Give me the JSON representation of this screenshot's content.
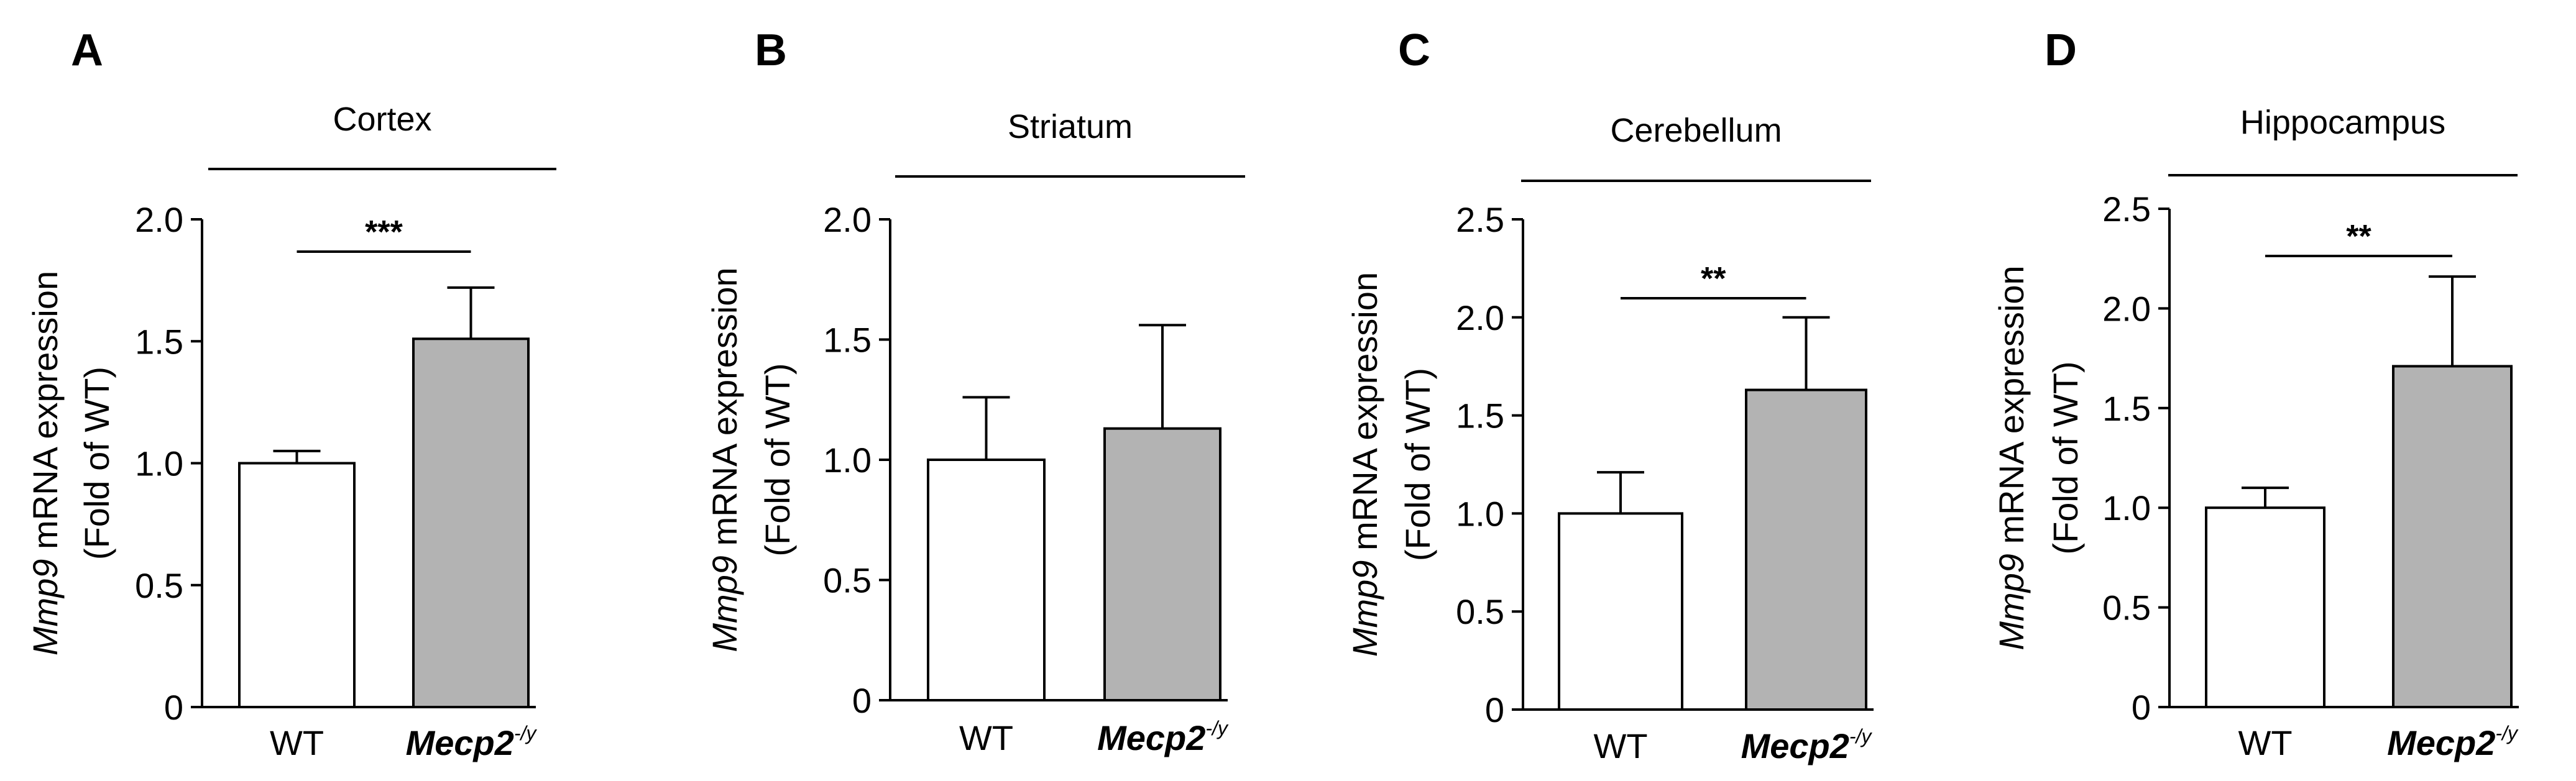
{
  "chart_data": [
    {
      "type": "bar",
      "panel_label": "A",
      "title": "Cortex",
      "ylabel_gene": "Mmp9",
      "ylabel_rest": " mRNA expression",
      "ylabel_line2": "(Fold of WT)",
      "categories": [
        "WT",
        "Mecp2"
      ],
      "category_superscript": [
        "",
        "-/y"
      ],
      "values": [
        1.0,
        1.51
      ],
      "errors": [
        0.05,
        0.21
      ],
      "bar_colors": [
        "#ffffff",
        "#b3b3b3"
      ],
      "yticks": [
        "0",
        "0.5",
        "1.0",
        "1.5",
        "2.0"
      ],
      "ylim": [
        0,
        2.0
      ],
      "significance": "***",
      "grid": false
    },
    {
      "type": "bar",
      "panel_label": "B",
      "title": "Striatum",
      "ylabel_gene": "Mmp9",
      "ylabel_rest": " mRNA expression",
      "ylabel_line2": "(Fold of WT)",
      "categories": [
        "WT",
        "Mecp2"
      ],
      "category_superscript": [
        "",
        "-/y"
      ],
      "values": [
        1.0,
        1.13
      ],
      "errors": [
        0.26,
        0.43
      ],
      "bar_colors": [
        "#ffffff",
        "#b3b3b3"
      ],
      "yticks": [
        "0",
        "0.5",
        "1.0",
        "1.5",
        "2.0"
      ],
      "ylim": [
        0,
        2.0
      ],
      "significance": "",
      "grid": false
    },
    {
      "type": "bar",
      "panel_label": "C",
      "title": "Cerebellum",
      "ylabel_gene": "Mmp9",
      "ylabel_rest": " mRNA expression",
      "ylabel_line2": "(Fold of WT)",
      "categories": [
        "WT",
        "Mecp2"
      ],
      "category_superscript": [
        "",
        "-/y"
      ],
      "values": [
        1.0,
        1.63
      ],
      "errors": [
        0.21,
        0.37
      ],
      "bar_colors": [
        "#ffffff",
        "#b3b3b3"
      ],
      "yticks": [
        "0",
        "0.5",
        "1.0",
        "1.5",
        "2.0",
        "2.5"
      ],
      "ylim": [
        0,
        2.5
      ],
      "significance": "**",
      "grid": false
    },
    {
      "type": "bar",
      "panel_label": "D",
      "title": "Hippocampus",
      "ylabel_gene": "Mmp9",
      "ylabel_rest": " mRNA expression",
      "ylabel_line2": "(Fold of WT)",
      "categories": [
        "WT",
        "Mecp2"
      ],
      "category_superscript": [
        "",
        "-/y"
      ],
      "values": [
        1.0,
        1.71
      ],
      "errors": [
        0.1,
        0.45
      ],
      "bar_colors": [
        "#ffffff",
        "#b3b3b3"
      ],
      "yticks": [
        "0",
        "0.5",
        "1.0",
        "1.5",
        "2.0",
        "2.5"
      ],
      "ylim": [
        0,
        2.5
      ],
      "significance": "**",
      "grid": false
    }
  ]
}
